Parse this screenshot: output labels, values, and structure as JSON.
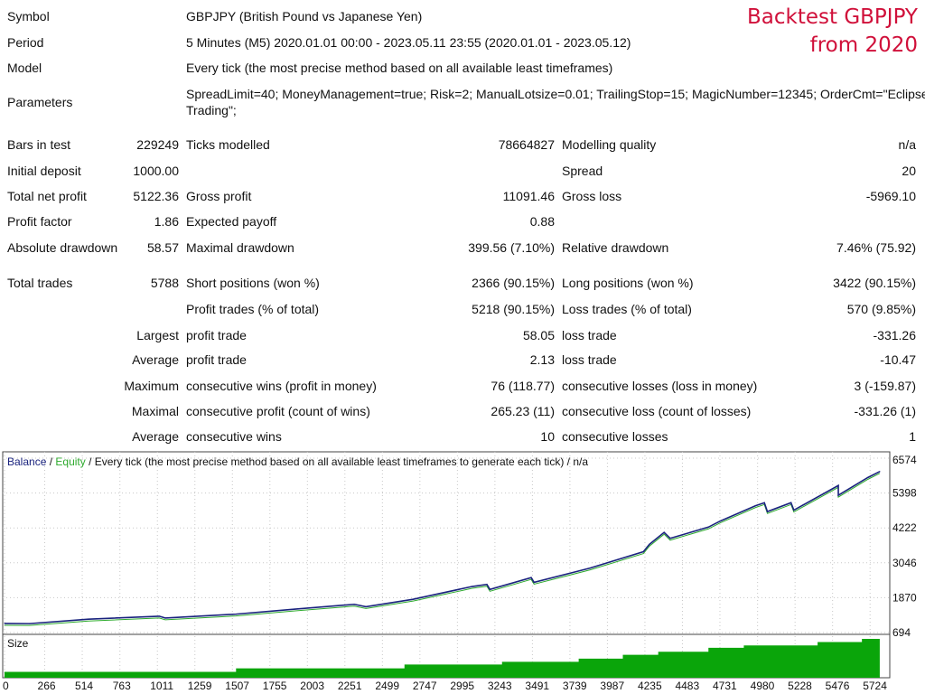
{
  "overlay_title": [
    "Backtest GBPJPY",
    "from 2020"
  ],
  "header": {
    "symbol_label": "Symbol",
    "symbol": "GBPJPY (British Pound vs Japanese Yen)",
    "period_label": "Period",
    "period": "5 Minutes (M5) 2020.01.01 00:00 - 2023.05.11 23:55 (2020.01.01 - 2023.05.12)",
    "model_label": "Model",
    "model": "Every tick (the most precise method based on all available least timeframes)",
    "parameters_label": "Parameters",
    "parameters_line1": "SpreadLimit=40; MoneyManagement=true; Risk=2; ManualLotsize=0.01; TrailingStop=15; MagicNumber=12345; OrderCmt=\"Eclipse",
    "parameters_line2": "Trading\";"
  },
  "stats": [
    {
      "l1": "Bars in test",
      "v1": "229249",
      "l2": "Ticks modelled",
      "v2": "78664827",
      "l3": "Modelling quality",
      "v3": "n/a"
    },
    {
      "l1": "Initial deposit",
      "v1": "1000.00",
      "l2": "",
      "v2": "",
      "l3": "Spread",
      "v3": "20"
    },
    {
      "l1": "Total net profit",
      "v1": "5122.36",
      "l2": "Gross profit",
      "v2": "11091.46",
      "l3": "Gross loss",
      "v3": "-5969.10"
    },
    {
      "l1": "Profit factor",
      "v1": "1.86",
      "l2": "Expected payoff",
      "v2": "0.88",
      "l3": "",
      "v3": ""
    },
    {
      "l1": "Absolute drawdown",
      "v1": "58.57",
      "l2": "Maximal drawdown",
      "v2": "399.56 (7.10%)",
      "l3": "Relative drawdown",
      "v3": "7.46% (75.92)"
    },
    {
      "l1": "Total trades",
      "v1": "5788",
      "l2": "Short positions (won %)",
      "v2": "2366 (90.15%)",
      "l3": "Long positions (won %)",
      "v3": "3422 (90.15%)"
    },
    {
      "l1": "",
      "v1": "",
      "l2": "Profit trades (% of total)",
      "v2": "5218 (90.15%)",
      "l3": "Loss trades (% of total)",
      "v3": "570 (9.85%)"
    },
    {
      "l1": "",
      "v1": "Largest",
      "l2": "profit trade",
      "v2": "58.05",
      "l3": "loss trade",
      "v3": "-331.26"
    },
    {
      "l1": "",
      "v1": "Average",
      "l2": "profit trade",
      "v2": "2.13",
      "l3": "loss trade",
      "v3": "-10.47"
    },
    {
      "l1": "",
      "v1": "Maximum",
      "l2": "consecutive wins (profit in money)",
      "v2": "76 (118.77)",
      "l3": "consecutive losses (loss in money)",
      "v3": "3 (-159.87)"
    },
    {
      "l1": "",
      "v1": "Maximal",
      "l2": "consecutive profit (count of wins)",
      "v2": "265.23 (11)",
      "l3": "consecutive loss (count of losses)",
      "v3": "-331.26 (1)"
    },
    {
      "l1": "",
      "v1": "Average",
      "l2": "consecutive wins",
      "v2": "10",
      "l3": "consecutive losses",
      "v3": "1"
    }
  ],
  "chart_data": {
    "type": "line",
    "legend": {
      "balance": "Balance",
      "sep1": " / ",
      "equity": "Equity",
      "rest": " / Every tick (the most precise method based on all available least timeframes to generate each tick) / n/a"
    },
    "colors": {
      "balance": "#1a237e",
      "equity": "#2eaa2e",
      "size": "#0aa50a",
      "grid": "#c8c8c8"
    },
    "x_ticks": [
      0,
      266,
      514,
      763,
      1011,
      1259,
      1507,
      1755,
      2003,
      2251,
      2499,
      2747,
      2995,
      3243,
      3491,
      3739,
      3987,
      4235,
      4483,
      4731,
      4980,
      5228,
      5476,
      5724
    ],
    "y_ticks": [
      694,
      1870,
      3046,
      4222,
      5398,
      6574
    ],
    "xlim": [
      0,
      5788
    ],
    "ylim": [
      694,
      6574
    ],
    "grid": true,
    "series": [
      {
        "name": "Balance",
        "x": [
          0,
          165,
          556,
          1023,
          1063,
          1531,
          1922,
          2313,
          2390,
          2702,
          3093,
          3190,
          3210,
          3483,
          3502,
          3873,
          4225,
          4265,
          4362,
          4402,
          4655,
          4732,
          4967,
          5025,
          5045,
          5201,
          5220,
          5514,
          5514,
          5710,
          5788
        ],
        "y": [
          1000,
          995,
          1145,
          1245,
          1185,
          1315,
          1485,
          1646,
          1565,
          1816,
          2247,
          2317,
          2147,
          2547,
          2387,
          2868,
          3419,
          3669,
          4070,
          3870,
          4250,
          4450,
          4971,
          5071,
          4771,
          5071,
          4821,
          5652,
          5322,
          5923,
          6122
        ]
      }
    ],
    "size_panel": {
      "label": "Size",
      "x": [
        0,
        1531,
        2645,
        3290,
        3797,
        4089,
        4323,
        4655,
        4889,
        5377,
        5670,
        5788
      ],
      "values": [
        0.15,
        0.24,
        0.34,
        0.41,
        0.49,
        0.59,
        0.67,
        0.77,
        0.83,
        0.92,
        1.0,
        1.0
      ]
    }
  }
}
